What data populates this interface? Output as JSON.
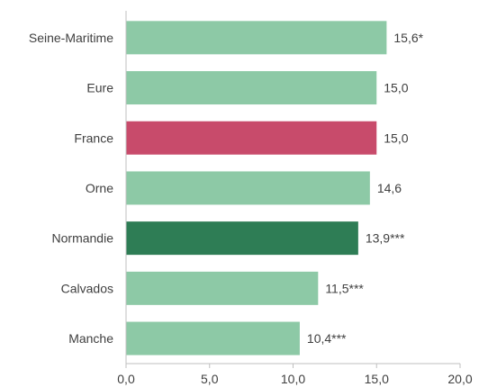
{
  "chart_data": {
    "type": "bar",
    "orientation": "horizontal",
    "categories": [
      "Seine-Maritime",
      "Eure",
      "France",
      "Orne",
      "Normandie",
      "Calvados",
      "Manche"
    ],
    "values": [
      15.6,
      15.0,
      15.0,
      14.6,
      13.9,
      11.5,
      10.4
    ],
    "value_labels": [
      "15,6*",
      "15,0",
      "15,0",
      "14,6",
      "13,9***",
      "11,5***",
      "10,4***"
    ],
    "bar_colors": [
      "#8DC9A6",
      "#8DC9A6",
      "#C84B6B",
      "#8DC9A6",
      "#2E7D55",
      "#8DC9A6",
      "#8DC9A6"
    ],
    "xlim": [
      0,
      20
    ],
    "x_ticks": [
      0,
      5,
      10,
      15,
      20
    ],
    "x_tick_labels": [
      "0,0",
      "5,0",
      "10,0",
      "15,0",
      "20,0"
    ],
    "grid": false,
    "title": "",
    "xlabel": "",
    "ylabel": ""
  }
}
